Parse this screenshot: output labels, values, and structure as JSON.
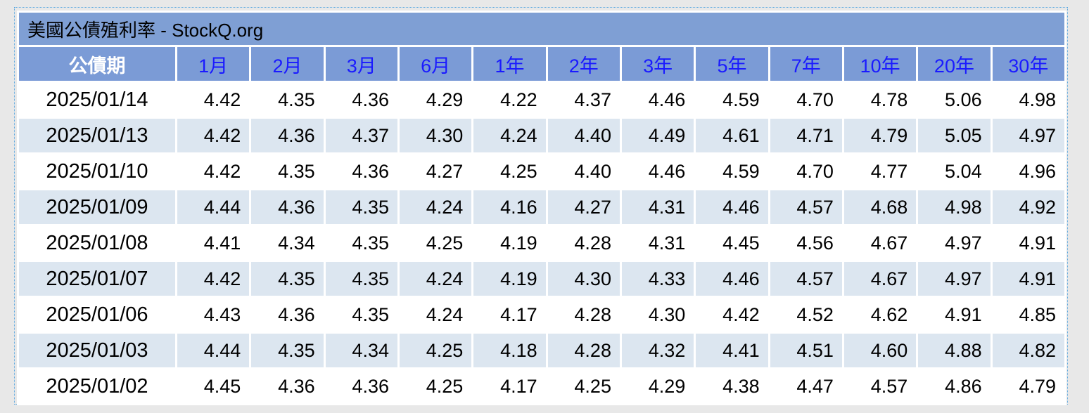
{
  "title": "美國公債殖利率 - StockQ.org",
  "table": {
    "header": [
      "公債期",
      "1月",
      "2月",
      "3月",
      "6月",
      "1年",
      "2年",
      "3年",
      "5年",
      "7年",
      "10年",
      "20年",
      "30年"
    ],
    "rows": [
      [
        "2025/01/14",
        "4.42",
        "4.35",
        "4.36",
        "4.29",
        "4.22",
        "4.37",
        "4.46",
        "4.59",
        "4.70",
        "4.78",
        "5.06",
        "4.98"
      ],
      [
        "2025/01/13",
        "4.42",
        "4.36",
        "4.37",
        "4.30",
        "4.24",
        "4.40",
        "4.49",
        "4.61",
        "4.71",
        "4.79",
        "5.05",
        "4.97"
      ],
      [
        "2025/01/10",
        "4.42",
        "4.35",
        "4.36",
        "4.27",
        "4.25",
        "4.40",
        "4.46",
        "4.59",
        "4.70",
        "4.77",
        "5.04",
        "4.96"
      ],
      [
        "2025/01/09",
        "4.44",
        "4.36",
        "4.35",
        "4.24",
        "4.16",
        "4.27",
        "4.31",
        "4.46",
        "4.57",
        "4.68",
        "4.98",
        "4.92"
      ],
      [
        "2025/01/08",
        "4.41",
        "4.34",
        "4.35",
        "4.25",
        "4.19",
        "4.28",
        "4.31",
        "4.45",
        "4.56",
        "4.67",
        "4.97",
        "4.91"
      ],
      [
        "2025/01/07",
        "4.42",
        "4.35",
        "4.35",
        "4.24",
        "4.19",
        "4.30",
        "4.33",
        "4.46",
        "4.57",
        "4.67",
        "4.97",
        "4.91"
      ],
      [
        "2025/01/06",
        "4.43",
        "4.36",
        "4.35",
        "4.24",
        "4.17",
        "4.28",
        "4.30",
        "4.42",
        "4.52",
        "4.62",
        "4.91",
        "4.85"
      ],
      [
        "2025/01/03",
        "4.44",
        "4.35",
        "4.34",
        "4.25",
        "4.18",
        "4.28",
        "4.32",
        "4.41",
        "4.51",
        "4.60",
        "4.88",
        "4.82"
      ],
      [
        "2025/01/02",
        "4.45",
        "4.36",
        "4.36",
        "4.25",
        "4.17",
        "4.25",
        "4.29",
        "4.38",
        "4.47",
        "4.57",
        "4.86",
        "4.79"
      ]
    ]
  }
}
